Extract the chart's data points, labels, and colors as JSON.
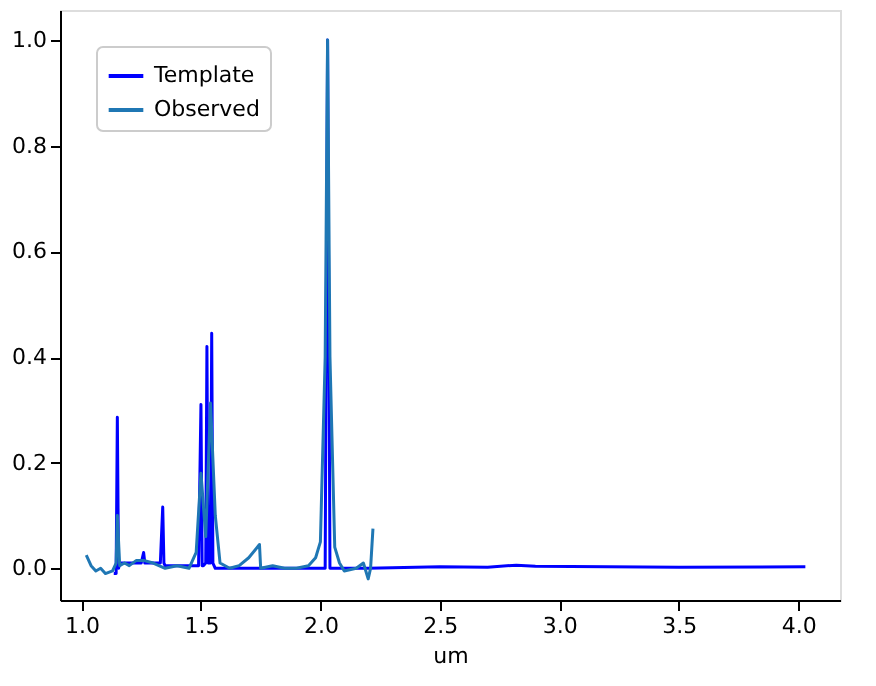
{
  "chart_data": {
    "type": "line",
    "xlabel": "um",
    "xlim": [
      0.91,
      4.175
    ],
    "ylim": [
      -0.06,
      1.057
    ],
    "xticks": [
      {
        "value": 1.0,
        "label": "1.0"
      },
      {
        "value": 1.5,
        "label": "1.5"
      },
      {
        "value": 2.0,
        "label": "2.0"
      },
      {
        "value": 2.5,
        "label": "2.5"
      },
      {
        "value": 3.0,
        "label": "3.0"
      },
      {
        "value": 3.5,
        "label": "3.5"
      },
      {
        "value": 4.0,
        "label": "4.0"
      }
    ],
    "yticks": [
      {
        "value": 0.0,
        "label": "0.0"
      },
      {
        "value": 0.2,
        "label": "0.2"
      },
      {
        "value": 0.4,
        "label": "0.4"
      },
      {
        "value": 0.6,
        "label": "0.6"
      },
      {
        "value": 0.8,
        "label": "0.8"
      },
      {
        "value": 1.0,
        "label": "1.0"
      }
    ],
    "grid": false,
    "legend": "top left",
    "line_style": "solid",
    "marker": "none",
    "series": [
      {
        "name": "Template",
        "color": "#0000ff",
        "x": [
          1.135,
          1.145,
          1.15,
          1.155,
          1.16,
          1.2,
          1.25,
          1.26,
          1.265,
          1.27,
          1.33,
          1.34,
          1.345,
          1.35,
          1.45,
          1.49,
          1.5,
          1.505,
          1.51,
          1.52,
          1.525,
          1.53,
          1.54,
          1.545,
          1.55,
          1.56,
          1.7,
          1.9,
          2.02,
          2.03,
          2.04,
          2.2,
          2.5,
          2.7,
          2.82,
          2.9,
          3.2,
          3.5,
          4.03
        ],
        "values": [
          -0.01,
          -0.01,
          0.286,
          0.0,
          0.01,
          0.01,
          0.01,
          0.03,
          0.01,
          0.01,
          0.01,
          0.116,
          0.01,
          0.005,
          0.005,
          0.005,
          0.31,
          0.005,
          0.005,
          0.01,
          0.42,
          0.01,
          0.01,
          0.445,
          0.01,
          0.0,
          0.0,
          0.0,
          0.0,
          1.0,
          0.0,
          0.0,
          0.003,
          0.002,
          0.006,
          0.004,
          0.003,
          0.002,
          0.003
        ]
      },
      {
        "name": "Observed",
        "color": "#1f77b4",
        "x": [
          1.02,
          1.04,
          1.06,
          1.08,
          1.1,
          1.13,
          1.145,
          1.15,
          1.16,
          1.18,
          1.2,
          1.23,
          1.26,
          1.3,
          1.35,
          1.4,
          1.45,
          1.48,
          1.5,
          1.52,
          1.54,
          1.56,
          1.58,
          1.62,
          1.66,
          1.7,
          1.745,
          1.75,
          1.8,
          1.85,
          1.9,
          1.95,
          1.98,
          2.0,
          2.02,
          2.03,
          2.04,
          2.06,
          2.08,
          2.1,
          2.15,
          2.18,
          2.2,
          2.21,
          2.22
        ],
        "values": [
          0.025,
          0.005,
          -0.005,
          0.0,
          -0.01,
          -0.005,
          0.01,
          0.1,
          0.005,
          0.01,
          0.005,
          0.015,
          0.015,
          0.01,
          0.0,
          0.005,
          0.0,
          0.03,
          0.18,
          0.06,
          0.313,
          0.1,
          0.01,
          0.0,
          0.005,
          0.02,
          0.045,
          0.0,
          0.005,
          0.0,
          0.0,
          0.005,
          0.02,
          0.05,
          0.4,
          1.0,
          0.4,
          0.04,
          0.01,
          -0.005,
          0.0,
          0.01,
          -0.02,
          0.0,
          0.075
        ]
      }
    ]
  }
}
